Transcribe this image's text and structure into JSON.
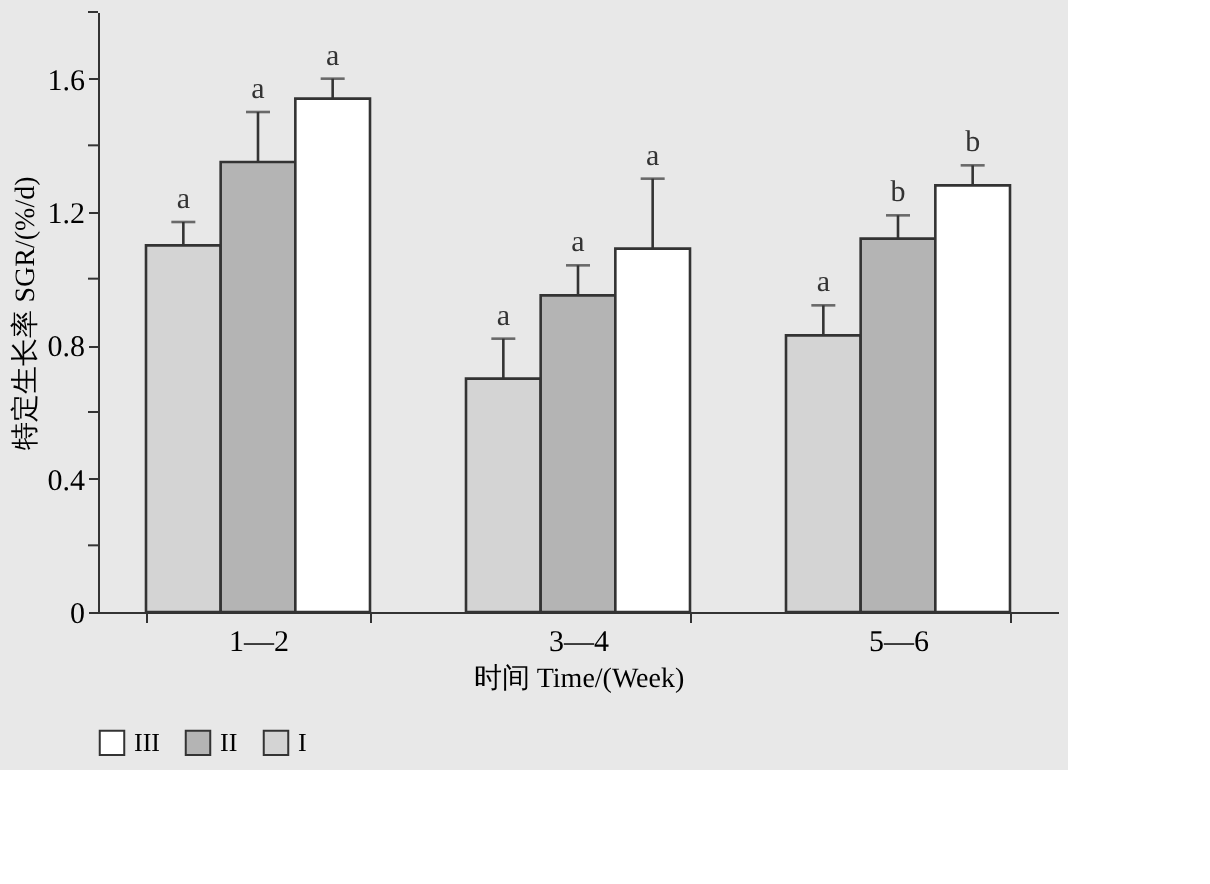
{
  "chart_data": {
    "type": "bar",
    "xlabel": "时间 Time/(Week)",
    "ylabel": "特定生长率 SGR/(%/d)",
    "categories": [
      "1—2",
      "3—4",
      "5—6"
    ],
    "series": [
      {
        "name": "I",
        "color": "#d4d4d4",
        "values": [
          1.1,
          0.7,
          0.83
        ],
        "errors": [
          [
            1.1,
            1.17
          ],
          [
            0.7,
            0.82
          ],
          [
            0.83,
            0.92
          ]
        ],
        "value_labels": [
          "a",
          "a",
          "a"
        ]
      },
      {
        "name": "II",
        "color": "#b4b4b4",
        "values": [
          1.35,
          0.95,
          1.12
        ],
        "errors": [
          [
            1.35,
            1.5
          ],
          [
            0.95,
            1.04
          ],
          [
            1.12,
            1.19
          ]
        ],
        "value_labels": [
          "a",
          "a",
          "b"
        ]
      },
      {
        "name": "III",
        "color": "#ffffff",
        "values": [
          1.54,
          1.09,
          1.28
        ],
        "errors": [
          [
            1.54,
            1.6
          ],
          [
            1.09,
            1.3
          ],
          [
            1.28,
            1.34
          ]
        ],
        "value_labels": [
          "a",
          "a",
          "b"
        ]
      }
    ],
    "ylim": [
      0,
      1.8
    ],
    "yticks": [
      0,
      {
        "value": 0.2,
        "label": null
      },
      0.4,
      {
        "value": 0.6,
        "label": null
      },
      0.8,
      {
        "value": 1.0,
        "label": null
      },
      1.2,
      {
        "value": 1.4,
        "label": null
      },
      1.6,
      {
        "value": 1.8,
        "label": null
      }
    ],
    "grid": false,
    "legend": "bottom"
  }
}
